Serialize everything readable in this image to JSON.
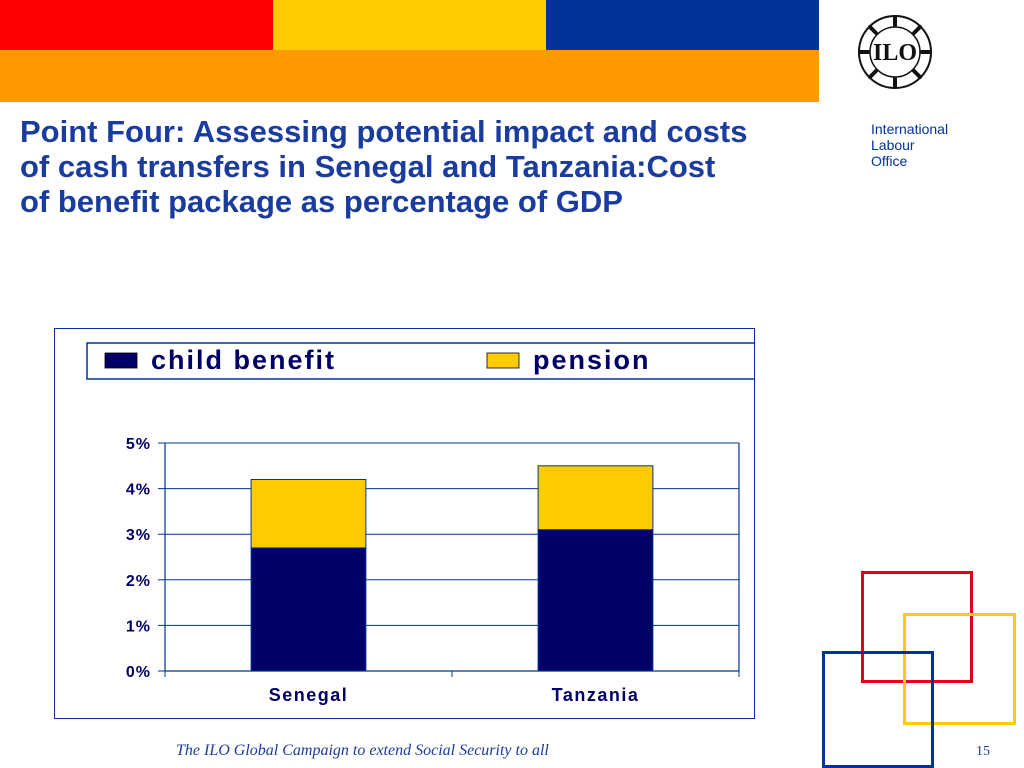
{
  "header": {
    "colors": [
      "#ff0000",
      "#ffcc00",
      "#003399",
      "#ff9900"
    ]
  },
  "logo": {
    "text": "ILO",
    "icon": "ilo-emblem-icon",
    "org_lines": [
      "International",
      "Labour",
      "Office"
    ]
  },
  "title": "Point Four: Assessing potential impact and costs\nof    cash transfers in Senegal and Tanzania:Cost\nof benefit package as percentage of GDP",
  "chart_data": {
    "type": "bar",
    "stacked": true,
    "categories": [
      "Senegal",
      "Tanzania"
    ],
    "series": [
      {
        "name": "child benefit",
        "values": [
          2.7,
          3.1
        ],
        "color": "#000066"
      },
      {
        "name": "pension",
        "values": [
          1.5,
          1.4
        ],
        "color": "#ffcc00"
      }
    ],
    "ylim": [
      0,
      5
    ],
    "yticks": [
      "0%",
      "1%",
      "2%",
      "3%",
      "4%",
      "5%"
    ],
    "title": "",
    "xlabel": "",
    "ylabel": "",
    "grid": true,
    "legend_position": "top"
  },
  "footer": {
    "text": "The ILO Global Campaign to extend Social Security to all",
    "page_number": "15"
  }
}
